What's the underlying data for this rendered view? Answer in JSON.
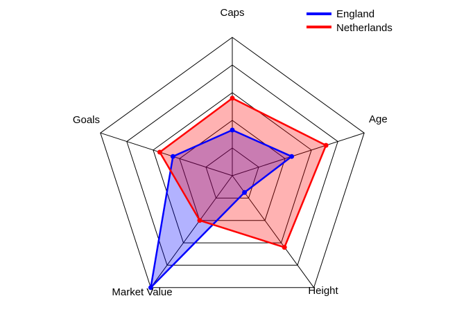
{
  "chart_data": {
    "type": "radar",
    "axes": [
      "Caps",
      "Age",
      "Height",
      "Market Value",
      "Goals"
    ],
    "range": [
      0,
      1
    ],
    "levels": 5,
    "grid": true,
    "legend_position": "top-right",
    "series": [
      {
        "name": "England",
        "values": [
          0.33,
          0.45,
          0.15,
          1.0,
          0.45
        ],
        "color": "#0000ff",
        "fill": "rgba(0,0,255,0.3)"
      },
      {
        "name": "Netherlands",
        "values": [
          0.56,
          0.71,
          0.64,
          0.4,
          0.55
        ],
        "color": "#ff0000",
        "fill": "rgba(255,0,0,0.3)"
      }
    ]
  }
}
